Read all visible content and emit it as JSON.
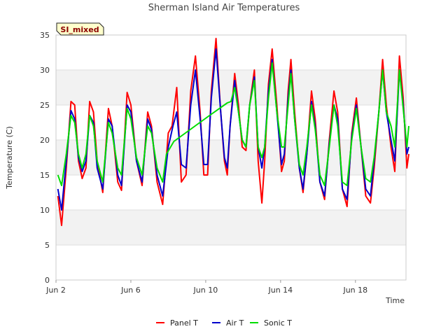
{
  "chart_data": {
    "type": "line",
    "title": "Sherman Island Air Temperatures",
    "xlabel": "Time",
    "ylabel": "Temperature (C)",
    "badge": "SI_mixed",
    "xlim": [
      0,
      18.7
    ],
    "ylim": [
      0,
      35
    ],
    "yticks": [
      0,
      5,
      10,
      15,
      20,
      25,
      30,
      35
    ],
    "xticks": [
      {
        "label": "Jun 2",
        "day": 0
      },
      {
        "label": "Jun 6",
        "day": 4
      },
      {
        "label": "Jun 10",
        "day": 8
      },
      {
        "label": "Jun 14",
        "day": 12
      },
      {
        "label": "Jun 18",
        "day": 16
      }
    ],
    "legend_position": "bottom",
    "colors": {
      "panel": "#ff0000",
      "air": "#0000cc",
      "sonic": "#00dd00",
      "band": "#f2f2f2",
      "grid": "#dddddd"
    },
    "series": [
      {
        "name": "Panel T",
        "color": "#ff0000",
        "points": [
          [
            0.1,
            12
          ],
          [
            0.3,
            7.8
          ],
          [
            0.55,
            16
          ],
          [
            0.8,
            25.5
          ],
          [
            1,
            25
          ],
          [
            1.2,
            17
          ],
          [
            1.4,
            14.5
          ],
          [
            1.6,
            16
          ],
          [
            1.8,
            25.5
          ],
          [
            2,
            24
          ],
          [
            2.2,
            17
          ],
          [
            2.5,
            12.5
          ],
          [
            2.8,
            24.5
          ],
          [
            3,
            22
          ],
          [
            3.3,
            14
          ],
          [
            3.5,
            12.8
          ],
          [
            3.8,
            26.8
          ],
          [
            4,
            25
          ],
          [
            4.3,
            17
          ],
          [
            4.6,
            13.5
          ],
          [
            4.9,
            24
          ],
          [
            5.1,
            22
          ],
          [
            5.4,
            14
          ],
          [
            5.7,
            10.8
          ],
          [
            6,
            21
          ],
          [
            6.2,
            22
          ],
          [
            6.45,
            27.5
          ],
          [
            6.7,
            14
          ],
          [
            6.95,
            15
          ],
          [
            7.2,
            27
          ],
          [
            7.45,
            32
          ],
          [
            7.7,
            24
          ],
          [
            7.9,
            15
          ],
          [
            8.1,
            15
          ],
          [
            8.3,
            27
          ],
          [
            8.55,
            34.5
          ],
          [
            8.8,
            24
          ],
          [
            9,
            17
          ],
          [
            9.15,
            15
          ],
          [
            9.3,
            22
          ],
          [
            9.55,
            29.5
          ],
          [
            9.75,
            25
          ],
          [
            9.95,
            19
          ],
          [
            10.15,
            18.5
          ],
          [
            10.35,
            25
          ],
          [
            10.6,
            30
          ],
          [
            10.8,
            17
          ],
          [
            11,
            11
          ],
          [
            11.15,
            17
          ],
          [
            11.35,
            28
          ],
          [
            11.55,
            33
          ],
          [
            11.8,
            25
          ],
          [
            12.05,
            15.5
          ],
          [
            12.2,
            17
          ],
          [
            12.4,
            27
          ],
          [
            12.55,
            31.5
          ],
          [
            12.75,
            24
          ],
          [
            13,
            16
          ],
          [
            13.2,
            12.5
          ],
          [
            13.4,
            18
          ],
          [
            13.65,
            27
          ],
          [
            13.85,
            23
          ],
          [
            14.1,
            14
          ],
          [
            14.35,
            11.5
          ],
          [
            14.6,
            20
          ],
          [
            14.85,
            27
          ],
          [
            15.05,
            24
          ],
          [
            15.3,
            13
          ],
          [
            15.55,
            10.5
          ],
          [
            15.8,
            21
          ],
          [
            16.05,
            26
          ],
          [
            16.3,
            19
          ],
          [
            16.55,
            12
          ],
          [
            16.8,
            11
          ],
          [
            17,
            16
          ],
          [
            17.25,
            24
          ],
          [
            17.45,
            31.5
          ],
          [
            17.65,
            25
          ],
          [
            17.9,
            19
          ],
          [
            18.1,
            15.5
          ],
          [
            18.35,
            32
          ],
          [
            18.55,
            26
          ],
          [
            18.75,
            16
          ],
          [
            18.85,
            18
          ]
        ]
      },
      {
        "name": "Air T",
        "color": "#0000cc",
        "points": [
          [
            0.1,
            13
          ],
          [
            0.3,
            10
          ],
          [
            0.55,
            17
          ],
          [
            0.8,
            24.2
          ],
          [
            1,
            23
          ],
          [
            1.2,
            17.5
          ],
          [
            1.4,
            15.5
          ],
          [
            1.6,
            17
          ],
          [
            1.8,
            23.5
          ],
          [
            2,
            22.5
          ],
          [
            2.2,
            16
          ],
          [
            2.5,
            13
          ],
          [
            2.8,
            23
          ],
          [
            3,
            22
          ],
          [
            3.3,
            15
          ],
          [
            3.5,
            13.5
          ],
          [
            3.8,
            25
          ],
          [
            4,
            24
          ],
          [
            4.3,
            17
          ],
          [
            4.6,
            14
          ],
          [
            4.9,
            23
          ],
          [
            5.1,
            21.5
          ],
          [
            5.4,
            15
          ],
          [
            5.7,
            12
          ],
          [
            6,
            19
          ],
          [
            6.25,
            22
          ],
          [
            6.45,
            24
          ],
          [
            6.7,
            16.5
          ],
          [
            6.95,
            16
          ],
          [
            7.2,
            25
          ],
          [
            7.45,
            30
          ],
          [
            7.7,
            23
          ],
          [
            7.9,
            16.5
          ],
          [
            8.1,
            16.5
          ],
          [
            8.3,
            26
          ],
          [
            8.55,
            33
          ],
          [
            8.8,
            24
          ],
          [
            9,
            17.5
          ],
          [
            9.15,
            16
          ],
          [
            9.3,
            22
          ],
          [
            9.55,
            28.5
          ],
          [
            9.75,
            24
          ],
          [
            9.95,
            20
          ],
          [
            10.15,
            19
          ],
          [
            10.35,
            25
          ],
          [
            10.6,
            29
          ],
          [
            10.8,
            19
          ],
          [
            11,
            16
          ],
          [
            11.15,
            19
          ],
          [
            11.35,
            27
          ],
          [
            11.55,
            31.5
          ],
          [
            11.8,
            24
          ],
          [
            12.05,
            16.5
          ],
          [
            12.2,
            18
          ],
          [
            12.4,
            26
          ],
          [
            12.55,
            30
          ],
          [
            12.75,
            23
          ],
          [
            13,
            16
          ],
          [
            13.2,
            13
          ],
          [
            13.4,
            18
          ],
          [
            13.65,
            25.5
          ],
          [
            13.85,
            22
          ],
          [
            14.1,
            14
          ],
          [
            14.35,
            12
          ],
          [
            14.6,
            19.5
          ],
          [
            14.85,
            25
          ],
          [
            15.05,
            23
          ],
          [
            15.3,
            13
          ],
          [
            15.55,
            11.5
          ],
          [
            15.8,
            20.5
          ],
          [
            16.05,
            25
          ],
          [
            16.3,
            19
          ],
          [
            16.55,
            13
          ],
          [
            16.8,
            12
          ],
          [
            17,
            17
          ],
          [
            17.25,
            24
          ],
          [
            17.45,
            30
          ],
          [
            17.65,
            24
          ],
          [
            17.9,
            20
          ],
          [
            18.1,
            17
          ],
          [
            18.35,
            30
          ],
          [
            18.55,
            25
          ],
          [
            18.75,
            18
          ],
          [
            18.85,
            19
          ]
        ]
      },
      {
        "name": "Sonic T",
        "color": "#00dd00",
        "points": [
          [
            0.1,
            15
          ],
          [
            0.3,
            13.5
          ],
          [
            0.55,
            18
          ],
          [
            0.8,
            23.5
          ],
          [
            1,
            22.5
          ],
          [
            1.2,
            18
          ],
          [
            1.4,
            16
          ],
          [
            1.6,
            18
          ],
          [
            1.8,
            23.5
          ],
          [
            2,
            22
          ],
          [
            2.2,
            17
          ],
          [
            2.5,
            14
          ],
          [
            2.8,
            22.5
          ],
          [
            3,
            21
          ],
          [
            3.3,
            16
          ],
          [
            3.5,
            15
          ],
          [
            3.8,
            24.5
          ],
          [
            4,
            23
          ],
          [
            4.3,
            17.5
          ],
          [
            4.6,
            15
          ],
          [
            4.9,
            22
          ],
          [
            5.1,
            21
          ],
          [
            5.4,
            16
          ],
          [
            5.7,
            14
          ],
          [
            5.9,
            18
          ],
          [
            6.3,
            19.8
          ],
          [
            8.2,
            23.5
          ],
          [
            9.15,
            25.3
          ],
          [
            9.35,
            25.5
          ],
          [
            9.55,
            27.5
          ],
          [
            9.75,
            24
          ],
          [
            9.95,
            20
          ],
          [
            10.15,
            19
          ],
          [
            10.35,
            25
          ],
          [
            10.6,
            28.5
          ],
          [
            10.8,
            19
          ],
          [
            11,
            17.5
          ],
          [
            11.15,
            19
          ],
          [
            11.35,
            26
          ],
          [
            11.55,
            31
          ],
          [
            11.8,
            24
          ],
          [
            12.05,
            19
          ],
          [
            12.2,
            19
          ],
          [
            12.4,
            25
          ],
          [
            12.55,
            29.5
          ],
          [
            12.75,
            23
          ],
          [
            13,
            16.5
          ],
          [
            13.2,
            15
          ],
          [
            13.4,
            19
          ],
          [
            13.65,
            25
          ],
          [
            13.85,
            21.5
          ],
          [
            14.1,
            15
          ],
          [
            14.35,
            13.5
          ],
          [
            14.6,
            19
          ],
          [
            14.85,
            25
          ],
          [
            15.05,
            22
          ],
          [
            15.3,
            14
          ],
          [
            15.55,
            13.5
          ],
          [
            15.8,
            20
          ],
          [
            16.05,
            24.5
          ],
          [
            16.3,
            19
          ],
          [
            16.55,
            14.5
          ],
          [
            16.8,
            14
          ],
          [
            17,
            17.5
          ],
          [
            17.25,
            24
          ],
          [
            17.45,
            30
          ],
          [
            17.65,
            24
          ],
          [
            17.9,
            22
          ],
          [
            18.1,
            19
          ],
          [
            18.35,
            30
          ],
          [
            18.55,
            24.5
          ],
          [
            18.75,
            19
          ],
          [
            18.85,
            22
          ]
        ]
      }
    ]
  }
}
